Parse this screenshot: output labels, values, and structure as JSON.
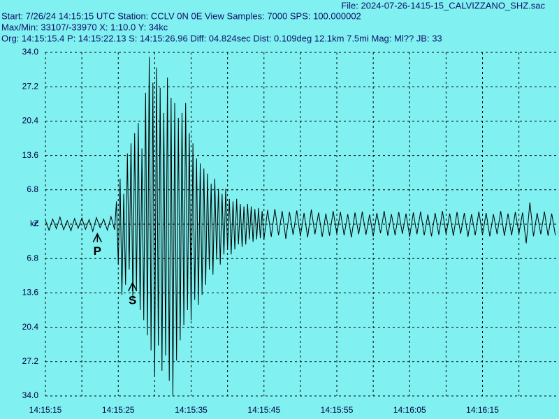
{
  "header": {
    "file": "File: 2024-07-26-1415-15_CALVIZZANO_SHZ.sac",
    "start": "Start: 7/26/24 14:15:15 UTC Station: CCLV 0N 0E View Samples: 7000  SPS: 100.000002",
    "maxmin": "Max/Min: 33107/-33970 X: 1:10.0 Y: 34kc",
    "org": "Org: 14:15:15.4 P: 14:15:22.13 S: 14:15:26.96 Diff: 04.824sec Dist: 0.109deg 12.1km 7.5mi  Mag: Ml?? JB: 33"
  },
  "chart_data": {
    "type": "line",
    "color": "#000000",
    "channel": "Z",
    "xlim": [
      0,
      70.5
    ],
    "ylim": [
      -34,
      34
    ],
    "xticks": [
      {
        "value": 0,
        "label": "14:15:15"
      },
      {
        "value": 10,
        "label": "14:15:25"
      },
      {
        "value": 20,
        "label": "14:15:35"
      },
      {
        "value": 30,
        "label": "14:15:45"
      },
      {
        "value": 40,
        "label": "14:15:55"
      },
      {
        "value": 50,
        "label": "14:16:05"
      },
      {
        "value": 60,
        "label": "14:16:15"
      }
    ],
    "minor_xticks": [
      5,
      15,
      25,
      35,
      45,
      55,
      65
    ],
    "yticks": [
      {
        "value": 34,
        "label": "34.0"
      },
      27.2,
      20.4,
      13.6,
      6.8,
      {
        "value": 0,
        "label": "kc"
      },
      {
        "value": -6.8,
        "label": "6.8"
      },
      {
        "value": -13.6,
        "label": "13.6"
      },
      {
        "value": -20.4,
        "label": "20.4"
      },
      {
        "value": -27.2,
        "label": "27.2"
      },
      {
        "value": -34,
        "label": "34.0"
      }
    ],
    "grid": true,
    "annotations": [
      {
        "label": "P",
        "x": 7.13,
        "y": -1.9
      },
      {
        "label": "S",
        "x": 11.96,
        "y": -11.6
      }
    ],
    "x": [
      0,
      0.5,
      1,
      1.5,
      2,
      2.5,
      3,
      3.5,
      4,
      4.5,
      5,
      5.5,
      6,
      6.5,
      7,
      7.5,
      8,
      8.5,
      9,
      9.5,
      9.75,
      10,
      10.25,
      10.5,
      10.75,
      11,
      11.25,
      11.5,
      11.75,
      12,
      12.25,
      12.5,
      12.75,
      13,
      13.25,
      13.5,
      13.75,
      14,
      14.25,
      14.5,
      14.75,
      15,
      15.25,
      15.5,
      15.75,
      16,
      16.25,
      16.5,
      16.75,
      17,
      17.25,
      17.5,
      17.75,
      18,
      18.25,
      18.5,
      18.75,
      19,
      19.25,
      19.5,
      19.75,
      20,
      20.25,
      20.5,
      20.75,
      21,
      21.25,
      21.5,
      21.75,
      22,
      22.25,
      22.5,
      22.75,
      23,
      23.25,
      23.5,
      23.75,
      24,
      24.25,
      24.5,
      24.75,
      25,
      25.25,
      25.5,
      25.75,
      26,
      26.25,
      26.5,
      26.75,
      27,
      27.25,
      27.5,
      27.75,
      28,
      28.25,
      28.5,
      28.75,
      29,
      29.25,
      29.5,
      29.75,
      30,
      30.5,
      31,
      31.5,
      32,
      32.5,
      33,
      33.5,
      34,
      34.5,
      35,
      35.5,
      36,
      36.5,
      37,
      37.5,
      38,
      38.5,
      39,
      39.5,
      40,
      40.5,
      41,
      41.5,
      42,
      42.5,
      43,
      43.5,
      44,
      44.5,
      45,
      45.5,
      46,
      46.5,
      47,
      47.5,
      48,
      48.5,
      49,
      49.5,
      50,
      50.5,
      51,
      51.5,
      52,
      52.5,
      53,
      53.5,
      54,
      54.5,
      55,
      55.5,
      56,
      56.5,
      57,
      57.5,
      58,
      58.5,
      59,
      59.5,
      60,
      60.5,
      61,
      61.5,
      62,
      62.5,
      63,
      63.5,
      64,
      64.5,
      65,
      65.5,
      66,
      66.5,
      67,
      67.5,
      68,
      68.5,
      69,
      69.5,
      70
    ],
    "values": [
      0.8,
      -1.2,
      1.0,
      -0.9,
      1.4,
      -1.1,
      0.7,
      -1.3,
      1.1,
      -0.8,
      1.2,
      -1.0,
      0.9,
      -1.4,
      1.3,
      -0.7,
      1.0,
      -1.2,
      1.5,
      -1.1,
      4.5,
      -8,
      9,
      -14,
      6,
      -12,
      14,
      -9,
      16,
      -15,
      18,
      -13,
      20,
      -17,
      15,
      -19,
      26,
      -22,
      33.1,
      -25,
      28,
      -30,
      31,
      -24,
      27,
      -29,
      22,
      -26,
      29,
      -31,
      25,
      -34,
      24,
      -27,
      21,
      -23,
      22,
      -20,
      24,
      -17,
      18,
      -19,
      16,
      -15,
      13,
      -16,
      12,
      -14,
      11,
      -12,
      10,
      -9,
      8,
      -10,
      9,
      -7,
      7,
      -8,
      6,
      -6,
      7,
      -5,
      5,
      -6,
      4.5,
      -5,
      5,
      -4,
      4,
      -4.5,
      3.5,
      -4,
      4,
      -3,
      3.5,
      -3.5,
      3,
      -3,
      3.2,
      -2.8,
      2.6,
      -3,
      2.8,
      -2.5,
      3.0,
      -2.2,
      2.6,
      -2.9,
      2.4,
      -2.1,
      2.7,
      -2.4,
      2.2,
      -2.6,
      2.9,
      -2.0,
      2.3,
      -2.5,
      2.1,
      -2.3,
      2.6,
      -1.9,
      2.4,
      -2.2,
      2.0,
      -2.6,
      2.3,
      -2.0,
      2.5,
      -2.1,
      1.9,
      -2.4,
      2.2,
      -1.8,
      2.6,
      -2.3,
      2.0,
      -2.2,
      2.4,
      -1.9,
      2.1,
      -2.5,
      2.3,
      -2.0,
      2.5,
      -2.2,
      1.9,
      -2.4,
      2.2,
      -2.1,
      2.6,
      -2.0,
      2.1,
      -2.3,
      2.4,
      -1.9,
      2.2,
      -2.5,
      2.0,
      -2.2,
      2.5,
      -2.1,
      2.2,
      -2.4,
      2.0,
      -2.0,
      2.6,
      -2.3,
      2.1,
      -2.2,
      2.4,
      -1.9,
      2.3,
      -3.8,
      4.3,
      -2.4,
      2.2,
      -2.0,
      2.5,
      -2.3,
      2.1,
      -2.2
    ]
  }
}
